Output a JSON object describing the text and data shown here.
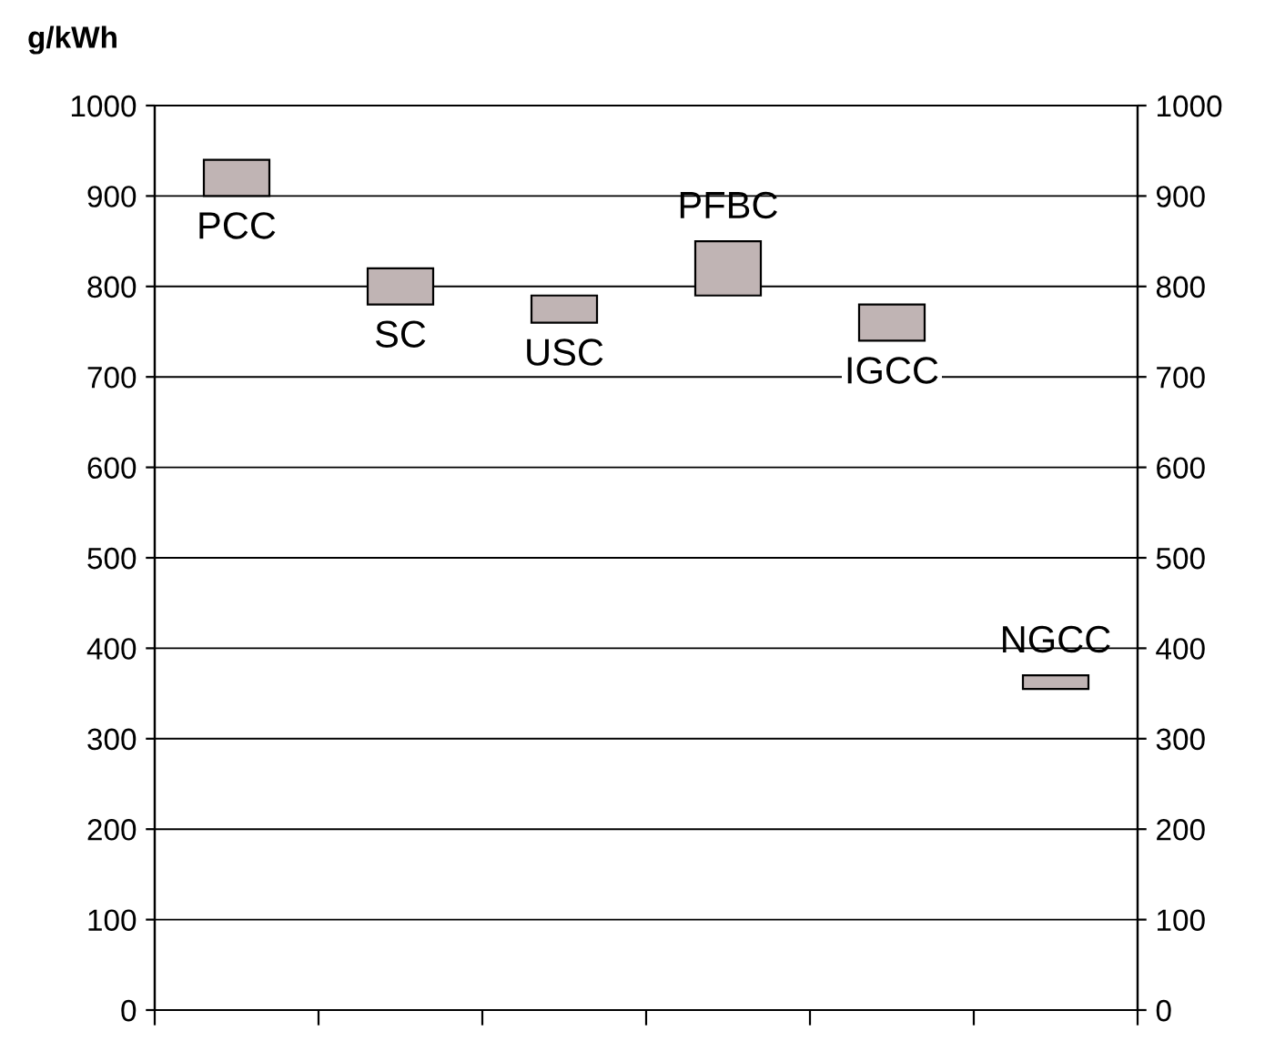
{
  "chart_data": {
    "type": "bar",
    "ylabel": "g/kWh",
    "categories": [
      "PCC",
      "SC",
      "USC",
      "PFBC",
      "IGCC",
      "NGCC"
    ],
    "base": [
      900,
      780,
      760,
      790,
      740,
      355
    ],
    "values": [
      40,
      40,
      30,
      60,
      40,
      15
    ],
    "color": "#c0b4b4",
    "ylim": [
      0,
      1000
    ],
    "yticks": [
      0,
      100,
      200,
      300,
      400,
      500,
      600,
      700,
      800,
      900,
      1000
    ],
    "y2lim": [
      0,
      1000
    ],
    "y2ticks": [
      0,
      100,
      200,
      300,
      400,
      500,
      600,
      700,
      800,
      900,
      1000
    ],
    "grid": "y"
  }
}
